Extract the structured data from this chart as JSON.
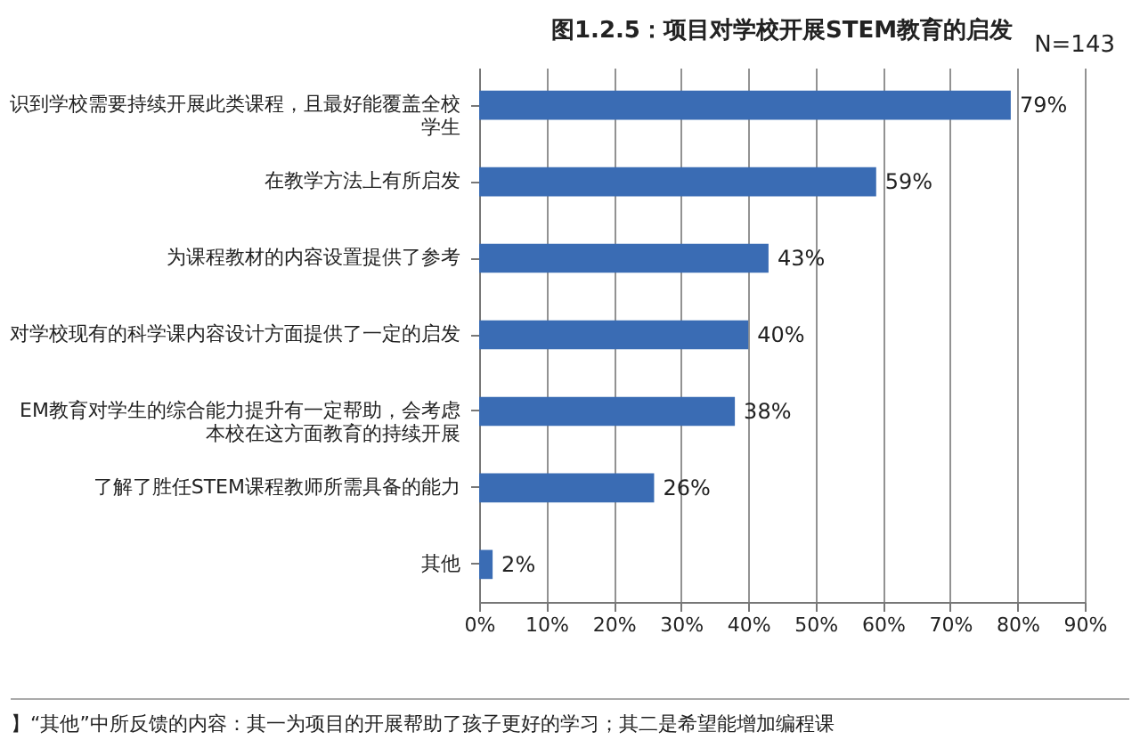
{
  "chart_data": {
    "type": "bar",
    "orientation": "horizontal",
    "title": "图1.2.5：项目对学校开展STEM教育的启发",
    "categories": [
      "识到学校需要持续开展此类课程，且最好能覆盖全校学生",
      "在教学方法上有所启发",
      "为课程教材的内容设置提供了参考",
      "对学校现有的科学课内容设计方面提供了一定的启发",
      "EM教育对学生的综合能力提升有一定帮助，会考虑本校在这方面教育的持续开展",
      "了解了胜任STEM课程教师所需具备的能力",
      "其他"
    ],
    "values": [
      79,
      59,
      43,
      40,
      38,
      26,
      2
    ],
    "value_labels": [
      "79%",
      "59%",
      "43%",
      "40%",
      "38%",
      "26%",
      "2%"
    ],
    "color": "#3a6cb4",
    "xlim": [
      0,
      90
    ],
    "xticks": [
      {
        "value": 0,
        "label": "0%"
      },
      {
        "value": 10,
        "label": "10%"
      },
      {
        "value": 20,
        "label": "20%"
      },
      {
        "value": 30,
        "label": "30%"
      },
      {
        "value": 40,
        "label": "40%"
      },
      {
        "value": 50,
        "label": "50%"
      },
      {
        "value": 60,
        "label": "60%"
      },
      {
        "value": 70,
        "label": "70%"
      },
      {
        "value": 80,
        "label": "80%"
      },
      {
        "value": 90,
        "label": "90%"
      }
    ],
    "grid": "x",
    "annotations": [
      "N=143",
      "】“其他”中所反馈的内容：其一为项目的开展帮助了孩子更好的学习；其二是希望能增加编程课"
    ]
  }
}
